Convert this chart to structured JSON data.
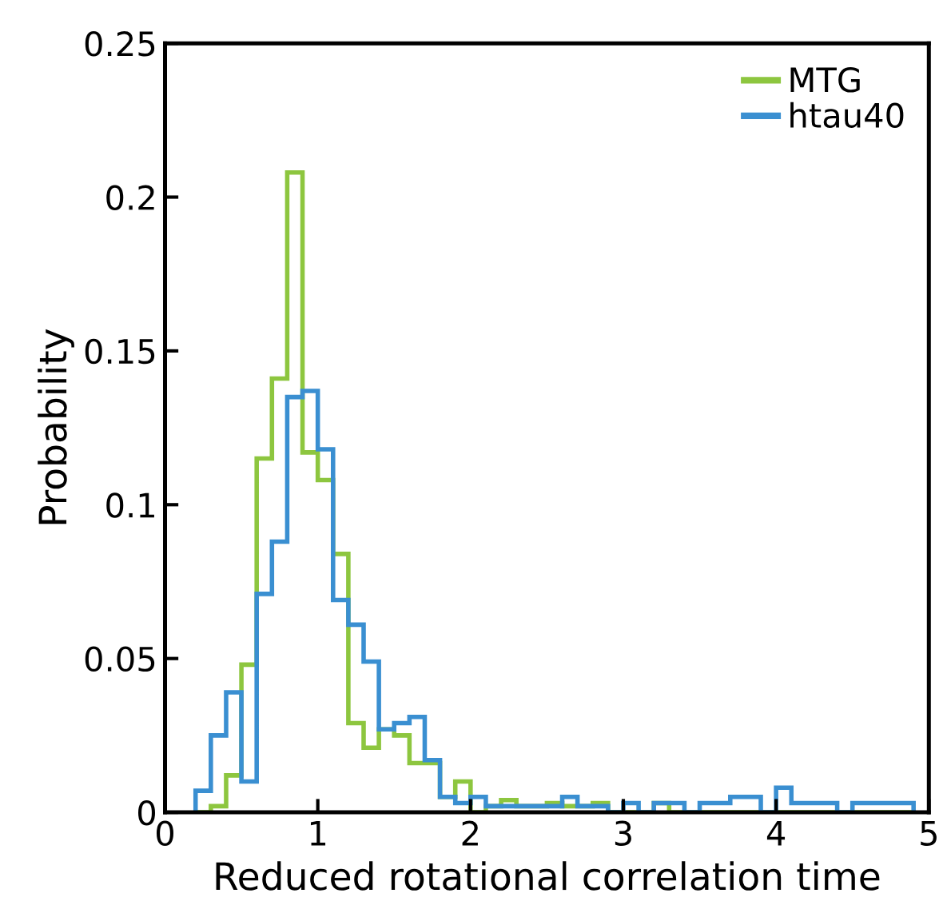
{
  "chart_data": {
    "type": "histogram",
    "xlabel": "Reduced rotational correlation time",
    "ylabel": "Probability",
    "xlim": [
      0,
      5
    ],
    "ylim": [
      0,
      0.25
    ],
    "xticks": [
      0,
      1,
      2,
      3,
      4,
      5
    ],
    "yticks": [
      0,
      0.05,
      0.1,
      0.15,
      0.2,
      0.25
    ],
    "legend": "top right",
    "grid": false,
    "bins": [
      0.2,
      0.3,
      0.4,
      0.5,
      0.6,
      0.7,
      0.8,
      0.9,
      1.0,
      1.1,
      1.2,
      1.3,
      1.4,
      1.5,
      1.6,
      1.7,
      1.8,
      1.9,
      2.0,
      2.1,
      2.2,
      2.3,
      2.4,
      2.5,
      2.6,
      2.7,
      2.8,
      2.9,
      3.0,
      3.1,
      3.2,
      3.3,
      3.4,
      3.5,
      3.6,
      3.7,
      3.8,
      3.9,
      4.0,
      4.1,
      4.2,
      4.3,
      4.4,
      4.5,
      4.6,
      4.7,
      4.8,
      4.9
    ],
    "series": [
      {
        "name": "MTG",
        "color": "#8dc63f",
        "values": [
          0,
          0.002,
          0.012,
          0.048,
          0.115,
          0.141,
          0.208,
          0.117,
          0.108,
          0.084,
          0.029,
          0.021,
          0.027,
          0.025,
          0.016,
          0.016,
          0.005,
          0.01,
          0,
          0.002,
          0.004,
          0.002,
          0.002,
          0.003,
          0.002,
          0.002,
          0.003,
          0,
          0,
          0,
          0.003,
          0,
          0,
          0,
          0,
          0,
          0,
          0,
          0,
          0,
          0,
          0,
          0,
          0,
          0,
          0,
          0
        ]
      },
      {
        "name": "htau40",
        "color": "#3a8fd1",
        "values": [
          0.007,
          0.025,
          0.039,
          0.01,
          0.071,
          0.088,
          0.135,
          0.137,
          0.118,
          0.069,
          0.061,
          0.049,
          0.027,
          0.029,
          0.031,
          0.017,
          0.005,
          0.003,
          0.005,
          0.002,
          0.002,
          0.002,
          0.002,
          0.002,
          0.005,
          0.002,
          0.002,
          0,
          0.003,
          0,
          0.003,
          0.003,
          0,
          0.003,
          0.003,
          0.005,
          0.005,
          0,
          0.008,
          0.003,
          0.003,
          0.003,
          0,
          0.003,
          0.003,
          0.003,
          0.003
        ]
      }
    ]
  }
}
